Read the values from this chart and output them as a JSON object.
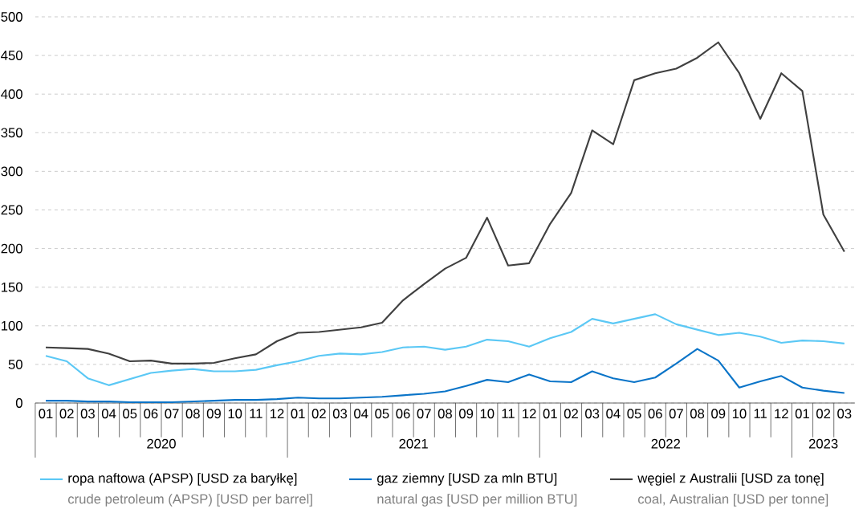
{
  "chart_data": {
    "type": "line",
    "categories": [
      "01",
      "02",
      "03",
      "04",
      "05",
      "06",
      "07",
      "08",
      "09",
      "10",
      "11",
      "12",
      "01",
      "02",
      "03",
      "04",
      "05",
      "06",
      "07",
      "08",
      "09",
      "10",
      "11",
      "12",
      "01",
      "02",
      "03",
      "04",
      "05",
      "06",
      "07",
      "08",
      "09",
      "10",
      "11",
      "12",
      "01",
      "02",
      "03"
    ],
    "series": [
      {
        "name": "ropa naftowa (APSP) [USD za baryłkę]",
        "color": "#5bc8f5",
        "values": [
          61,
          54,
          32,
          23,
          31,
          39,
          42,
          44,
          41,
          41,
          43,
          49,
          54,
          61,
          64,
          63,
          66,
          72,
          73,
          69,
          73,
          82,
          80,
          73,
          84,
          92,
          109,
          103,
          109,
          115,
          102,
          95,
          88,
          91,
          86,
          78,
          81,
          80,
          77
        ]
      },
      {
        "name": "gaz ziemny [USD za mln BTU]",
        "color": "#0a74c8",
        "values": [
          3,
          3,
          2,
          2,
          1,
          1,
          1,
          2,
          3,
          4,
          4,
          5,
          7,
          6,
          6,
          7,
          8,
          10,
          12,
          15,
          22,
          30,
          27,
          37,
          28,
          27,
          41,
          32,
          27,
          33,
          51,
          70,
          55,
          20,
          28,
          35,
          20,
          16,
          13
        ]
      },
      {
        "name": "węgiel z Australii [USD za tonę]",
        "color": "#404040",
        "values": [
          72,
          71,
          70,
          64,
          54,
          55,
          51,
          51,
          52,
          58,
          63,
          80,
          91,
          92,
          95,
          98,
          104,
          133,
          154,
          174,
          188,
          240,
          178,
          181,
          232,
          272,
          353,
          335,
          418,
          427,
          433,
          447,
          467,
          427,
          368,
          427,
          404,
          244,
          196
        ]
      }
    ],
    "ylim": [
      0,
      500
    ],
    "yticks": [
      0,
      50,
      100,
      150,
      200,
      250,
      300,
      350,
      400,
      450,
      500
    ],
    "grid": "y",
    "legend": "bottom",
    "annotations": [
      "2020",
      "2021",
      "2022",
      "2023",
      "crude petroleum (APSP) [USD per barrel]",
      "natural gas [USD per million BTU]",
      "coal, Australian [USD per tonne]"
    ]
  }
}
